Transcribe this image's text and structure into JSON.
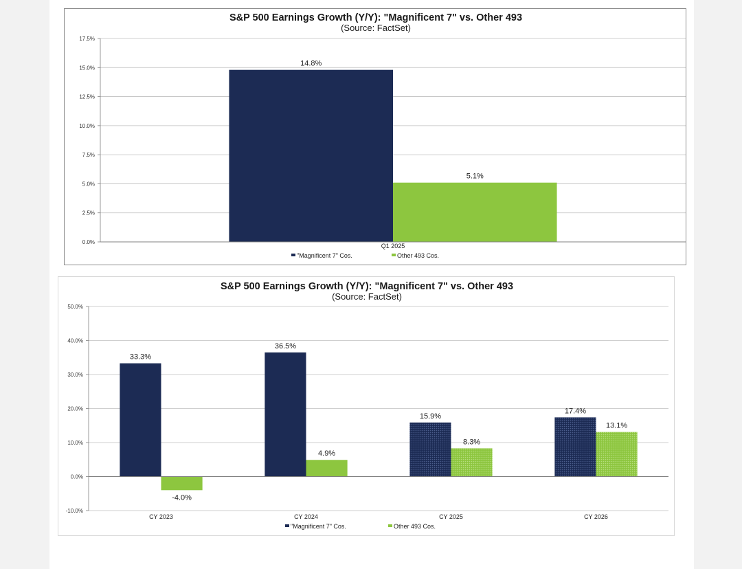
{
  "colors": {
    "mag7": "#1c2b54",
    "other493": "#8dc63f",
    "grid": "#bfbfbf",
    "axis": "#808080"
  },
  "chart_data": [
    {
      "type": "bar",
      "title": "S&P 500 Earnings Growth (Y/Y): \"Magnificent 7\" vs. Other 493",
      "subtitle": "(Source: FactSet)",
      "categories": [
        "Q1 2025"
      ],
      "series": [
        {
          "name": "\"Magnificent 7\" Cos.",
          "values": [
            14.8
          ],
          "labels": [
            "14.8%"
          ],
          "color": "#1c2b54"
        },
        {
          "name": "Other 493 Cos.",
          "values": [
            5.1
          ],
          "labels": [
            "5.1%"
          ],
          "color": "#8dc63f"
        }
      ],
      "ylim": [
        0,
        17.5
      ],
      "yticks": [
        0,
        2.5,
        5,
        7.5,
        10,
        12.5,
        15,
        17.5
      ],
      "ytick_labels": [
        "0.0%",
        "2.5%",
        "5.0%",
        "7.5%",
        "10.0%",
        "12.5%",
        "15.0%",
        "17.5%"
      ],
      "grid": true,
      "legend": "bottom-center",
      "estimate_categories": []
    },
    {
      "type": "bar",
      "title": "S&P 500 Earnings Growth (Y/Y): \"Magnificent 7\" vs. Other 493",
      "subtitle": "(Source: FactSet)",
      "categories": [
        "CY 2023",
        "CY 2024",
        "CY 2025",
        "CY 2026"
      ],
      "series": [
        {
          "name": "\"Magnificent 7\" Cos.",
          "values": [
            33.3,
            36.5,
            15.9,
            17.4
          ],
          "labels": [
            "33.3%",
            "36.5%",
            "15.9%",
            "17.4%"
          ],
          "color": "#1c2b54"
        },
        {
          "name": "Other 493 Cos.",
          "values": [
            -4.0,
            4.9,
            8.3,
            13.1
          ],
          "labels": [
            "-4.0%",
            "4.9%",
            "8.3%",
            "13.1%"
          ],
          "color": "#8dc63f"
        }
      ],
      "ylim": [
        -10,
        50
      ],
      "yticks": [
        -10,
        0,
        10,
        20,
        30,
        40,
        50
      ],
      "ytick_labels": [
        "-10.0%",
        "0.0%",
        "10.0%",
        "20.0%",
        "30.0%",
        "40.0%",
        "50.0%"
      ],
      "grid": true,
      "legend": "bottom-center",
      "estimate_categories": [
        "CY 2025",
        "CY 2026"
      ]
    }
  ]
}
